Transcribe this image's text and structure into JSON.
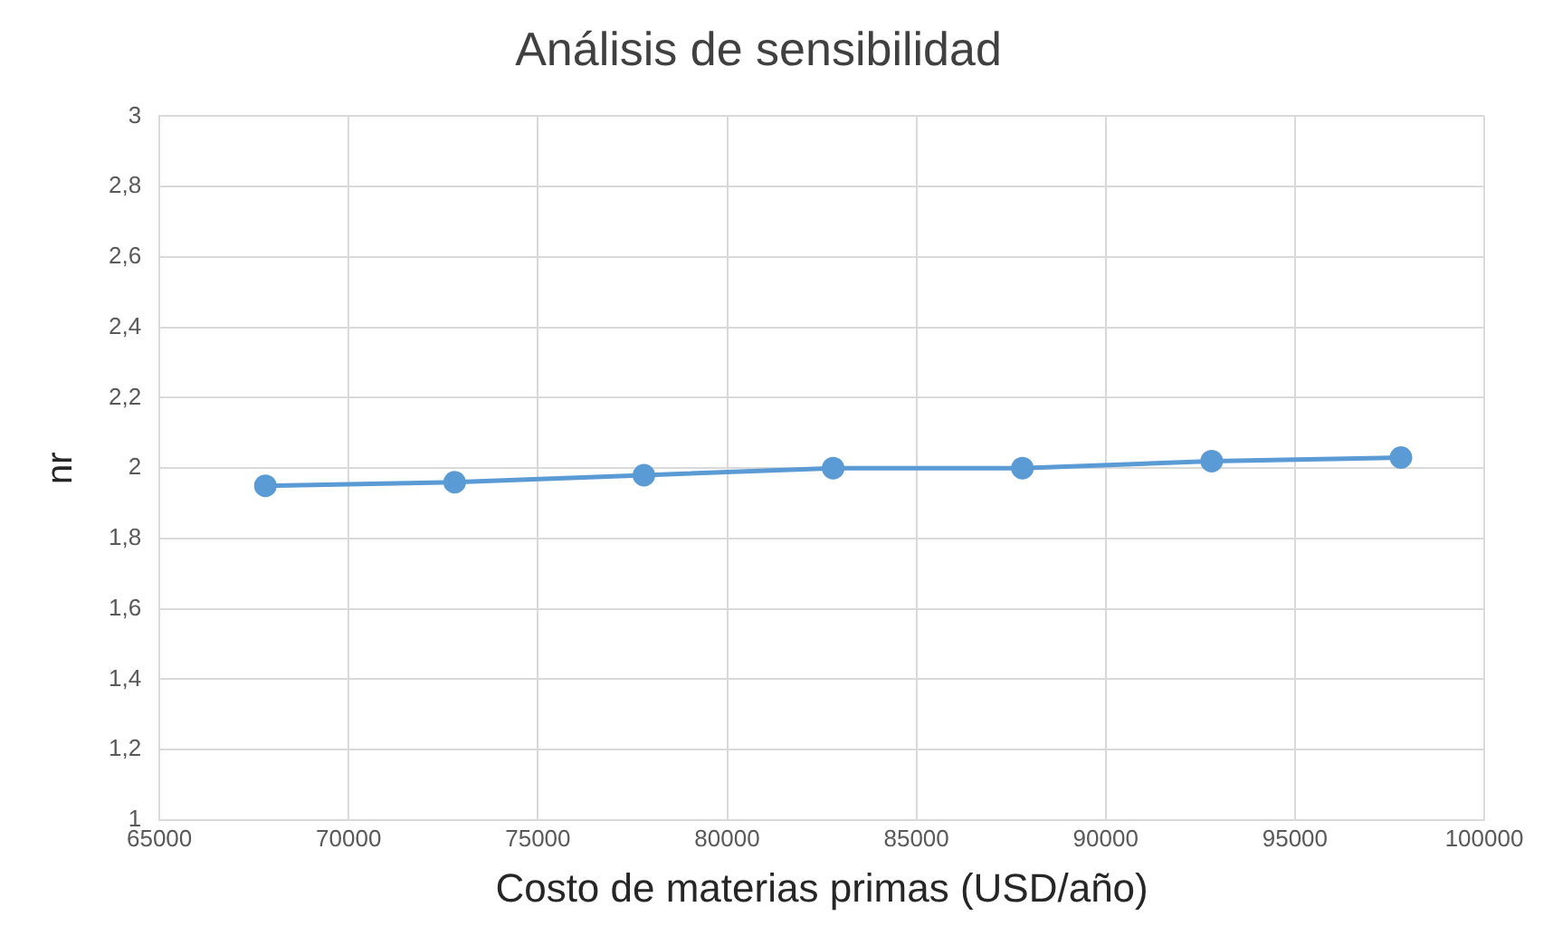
{
  "chart_data": {
    "type": "line",
    "title": "Análisis de sensibilidad",
    "xlabel": "Costo de materias primas (USD/año)",
    "ylabel": "nr",
    "x": [
      67800,
      72800,
      77800,
      82800,
      87800,
      92800,
      97800
    ],
    "series": [
      {
        "color": "#5b9bd5",
        "values": [
          1.95,
          1.96,
          1.98,
          2.0,
          2.0,
          2.02,
          2.03
        ]
      }
    ],
    "xlim": [
      65000,
      100000
    ],
    "xticks": [
      65000,
      70000,
      75000,
      80000,
      85000,
      90000,
      95000,
      100000
    ],
    "ylim": [
      1,
      3
    ],
    "yticks": [
      1,
      {
        "value": 1.2,
        "label": "1,2"
      },
      {
        "value": 1.4,
        "label": "1,4"
      },
      {
        "value": 1.6,
        "label": "1,6"
      },
      {
        "value": 1.8,
        "label": "1,8"
      },
      2,
      {
        "value": 2.2,
        "label": "2,2"
      },
      {
        "value": 2.4,
        "label": "2,4"
      },
      {
        "value": 2.6,
        "label": "2,6"
      },
      {
        "value": 2.8,
        "label": "2,8"
      },
      3
    ],
    "grid": true,
    "marker": "circle",
    "line_style": "solid",
    "legend": false
  }
}
